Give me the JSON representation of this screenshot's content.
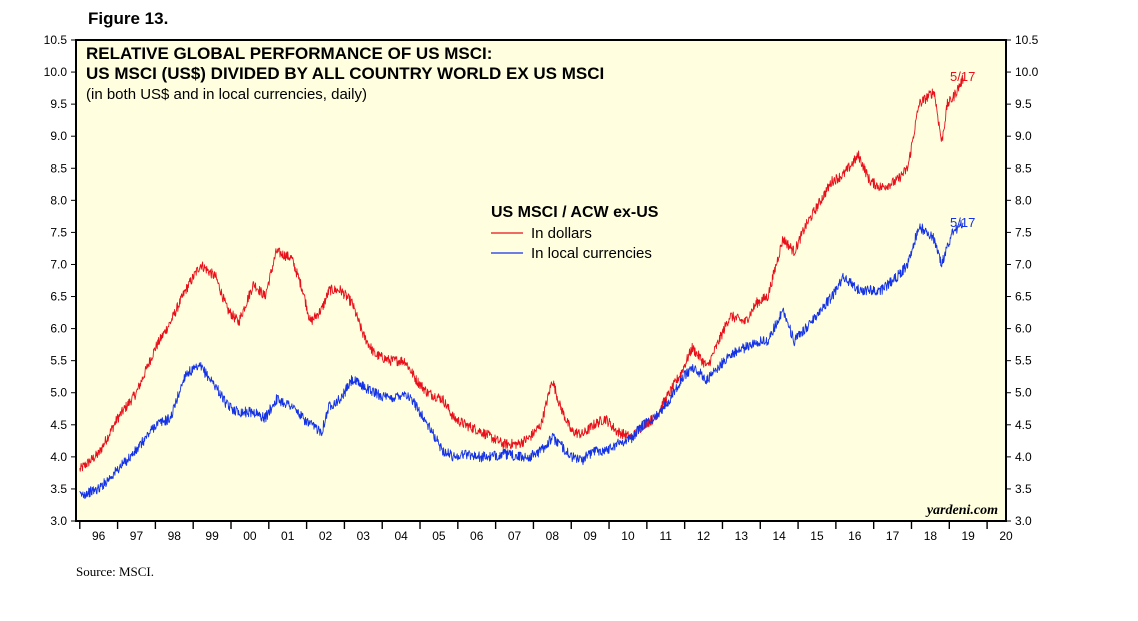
{
  "figure_label": "Figure 13.",
  "source": "Source: MSCI.",
  "watermark": "yardeni.com",
  "colors": {
    "background": "#FFFFE0",
    "dollars": "#E8101A",
    "local": "#1432E6"
  },
  "chart_data": {
    "type": "line",
    "title_line1": "RELATIVE GLOBAL PERFORMANCE OF US MSCI:",
    "title_line2": "US MSCI (US$) DIVIDED BY ALL COUNTRY WORLD EX US MSCI",
    "subtitle": "(in both US$ and in local currencies, daily)",
    "legend_title": "US MSCI / ACW ex-US",
    "ylim": [
      3.0,
      10.5
    ],
    "yticks": [
      "3.0",
      "3.5",
      "4.0",
      "4.5",
      "5.0",
      "5.5",
      "6.0",
      "6.5",
      "7.0",
      "7.5",
      "8.0",
      "8.5",
      "9.0",
      "9.5",
      "10.0",
      "10.5"
    ],
    "xlim": [
      1995.9,
      2020.5
    ],
    "xtick_labels": [
      "96",
      "97",
      "98",
      "99",
      "00",
      "01",
      "02",
      "03",
      "04",
      "05",
      "06",
      "07",
      "08",
      "09",
      "10",
      "11",
      "12",
      "13",
      "14",
      "15",
      "16",
      "17",
      "18",
      "19",
      "20"
    ],
    "series": [
      {
        "name": "In dollars",
        "color": "#E8101A",
        "end_label": "5/17",
        "end_value": 9.9,
        "x": [
          1996.0,
          1996.5,
          1997.0,
          1997.5,
          1998.0,
          1998.4,
          1998.8,
          1999.2,
          1999.6,
          1999.9,
          2000.2,
          2000.6,
          2000.9,
          2001.2,
          2001.6,
          2001.9,
          2002.1,
          2002.4,
          2002.6,
          2002.9,
          2003.2,
          2003.5,
          2003.8,
          2004.2,
          2004.6,
          2004.9,
          2005.2,
          2005.6,
          2005.9,
          2006.2,
          2006.6,
          2006.9,
          2007.2,
          2007.6,
          2007.9,
          2008.2,
          2008.5,
          2008.7,
          2009.0,
          2009.3,
          2009.6,
          2009.9,
          2010.2,
          2010.6,
          2010.9,
          2011.2,
          2011.6,
          2011.9,
          2012.2,
          2012.6,
          2012.9,
          2013.2,
          2013.6,
          2013.9,
          2014.2,
          2014.6,
          2014.9,
          2015.2,
          2015.6,
          2015.9,
          2016.2,
          2016.6,
          2016.9,
          2017.2,
          2017.6,
          2017.9,
          2018.2,
          2018.6,
          2018.8,
          2018.95,
          2019.1,
          2019.37
        ],
        "y": [
          3.8,
          4.05,
          4.6,
          5.0,
          5.7,
          6.1,
          6.6,
          7.0,
          6.8,
          6.3,
          6.1,
          6.7,
          6.5,
          7.2,
          7.1,
          6.6,
          6.1,
          6.3,
          6.6,
          6.6,
          6.4,
          5.9,
          5.6,
          5.5,
          5.5,
          5.2,
          5.0,
          4.9,
          4.6,
          4.5,
          4.4,
          4.3,
          4.2,
          4.2,
          4.3,
          4.5,
          5.2,
          4.8,
          4.4,
          4.35,
          4.5,
          4.6,
          4.4,
          4.3,
          4.5,
          4.6,
          5.0,
          5.3,
          5.7,
          5.4,
          5.8,
          6.2,
          6.1,
          6.4,
          6.5,
          7.4,
          7.2,
          7.6,
          8.0,
          8.3,
          8.4,
          8.7,
          8.3,
          8.2,
          8.3,
          8.5,
          9.5,
          9.7,
          8.9,
          9.5,
          9.6,
          9.9
        ]
      },
      {
        "name": "In local currencies",
        "color": "#1432E6",
        "end_label": "5/17",
        "end_value": 7.65,
        "x": [
          1996.0,
          1996.5,
          1997.0,
          1997.5,
          1998.0,
          1998.4,
          1998.8,
          1999.2,
          1999.6,
          1999.9,
          2000.2,
          2000.6,
          2000.9,
          2001.2,
          2001.6,
          2001.9,
          2002.1,
          2002.4,
          2002.6,
          2002.9,
          2003.2,
          2003.5,
          2003.8,
          2004.2,
          2004.6,
          2004.9,
          2005.2,
          2005.6,
          2005.9,
          2006.2,
          2006.6,
          2006.9,
          2007.2,
          2007.6,
          2007.9,
          2008.2,
          2008.5,
          2008.7,
          2009.0,
          2009.3,
          2009.6,
          2009.9,
          2010.2,
          2010.6,
          2010.9,
          2011.2,
          2011.6,
          2011.9,
          2012.2,
          2012.6,
          2012.9,
          2013.2,
          2013.6,
          2013.9,
          2014.2,
          2014.6,
          2014.9,
          2015.2,
          2015.6,
          2015.9,
          2016.2,
          2016.6,
          2016.9,
          2017.2,
          2017.6,
          2017.9,
          2018.2,
          2018.6,
          2018.8,
          2018.95,
          2019.1,
          2019.37
        ],
        "y": [
          3.4,
          3.5,
          3.8,
          4.1,
          4.5,
          4.6,
          5.3,
          5.4,
          5.1,
          4.8,
          4.7,
          4.7,
          4.6,
          4.9,
          4.8,
          4.6,
          4.5,
          4.4,
          4.8,
          4.9,
          5.2,
          5.1,
          5.0,
          4.9,
          5.0,
          4.8,
          4.5,
          4.1,
          4.0,
          4.05,
          4.0,
          4.0,
          4.05,
          4.0,
          4.0,
          4.1,
          4.3,
          4.2,
          4.0,
          3.95,
          4.1,
          4.1,
          4.2,
          4.3,
          4.5,
          4.6,
          4.9,
          5.2,
          5.4,
          5.2,
          5.4,
          5.6,
          5.7,
          5.8,
          5.8,
          6.3,
          5.8,
          6.0,
          6.3,
          6.5,
          6.8,
          6.6,
          6.6,
          6.6,
          6.8,
          7.0,
          7.6,
          7.4,
          7.0,
          7.3,
          7.5,
          7.65
        ]
      }
    ]
  }
}
